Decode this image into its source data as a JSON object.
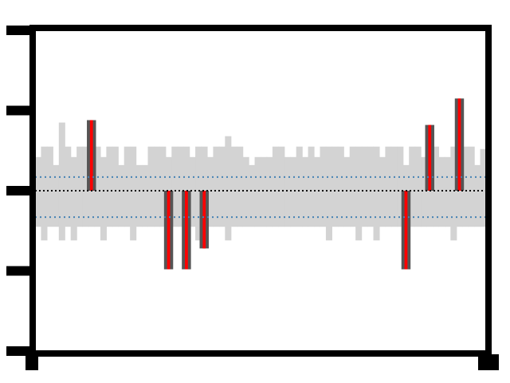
{
  "chart_data": {
    "type": "bar",
    "title": "",
    "xlabel": "",
    "ylabel": "",
    "ylim": [
      -2,
      2
    ],
    "grid": false,
    "legend": "none",
    "bins": 76,
    "baseline": 0,
    "threshold_upper": 0.17,
    "threshold_lower": -0.33,
    "colors": {
      "background_band": "#d3d3d3",
      "anomaly_base": "#555555",
      "anomaly": "#ff0000",
      "threshold": "#4682b4",
      "baseline": "#000000",
      "frame": "#000000"
    },
    "band_upper": [
      0.42,
      0.55,
      0.55,
      0.32,
      0.85,
      0.55,
      0.42,
      0.55,
      0.55,
      0.55,
      0.55,
      0.42,
      0.55,
      0.55,
      0.32,
      0.55,
      0.55,
      0.32,
      0.32,
      0.55,
      0.55,
      0.55,
      0.42,
      0.55,
      0.55,
      0.55,
      0.42,
      0.55,
      0.55,
      0.42,
      0.55,
      0.55,
      0.68,
      0.55,
      0.55,
      0.42,
      0.32,
      0.42,
      0.42,
      0.42,
      0.55,
      0.55,
      0.42,
      0.42,
      0.55,
      0.42,
      0.55,
      0.42,
      0.55,
      0.55,
      0.55,
      0.55,
      0.42,
      0.55,
      0.55,
      0.55,
      0.55,
      0.55,
      0.42,
      0.55,
      0.55,
      0.55,
      0.32,
      0.55,
      0.55,
      0.42,
      0.55,
      0.55,
      0.42,
      0.42,
      0.55,
      0.42,
      0.55,
      0.55,
      0.32,
      0.52
    ],
    "band_lower": [
      -0.45,
      -0.62,
      -0.45,
      -0.45,
      -0.62,
      -0.45,
      -0.62,
      -0.45,
      -0.45,
      -0.45,
      -0.45,
      -0.62,
      -0.45,
      -0.45,
      -0.45,
      -0.45,
      -0.62,
      -0.45,
      -0.45,
      -0.45,
      -0.45,
      -0.45,
      -0.62,
      -0.45,
      -0.45,
      -0.45,
      -0.45,
      -0.62,
      -0.45,
      -0.45,
      -0.45,
      -0.45,
      -0.62,
      -0.45,
      -0.45,
      -0.45,
      -0.45,
      -0.45,
      -0.45,
      -0.45,
      -0.45,
      -0.45,
      -0.45,
      -0.45,
      -0.45,
      -0.45,
      -0.45,
      -0.45,
      -0.45,
      -0.62,
      -0.45,
      -0.45,
      -0.45,
      -0.45,
      -0.62,
      -0.45,
      -0.45,
      -0.62,
      -0.45,
      -0.45,
      -0.45,
      -0.45,
      -0.62,
      -0.45,
      -0.45,
      -0.45,
      -0.45,
      -0.45,
      -0.45,
      -0.45,
      -0.62,
      -0.45,
      -0.45,
      -0.45,
      -0.45,
      -0.45
    ],
    "anomalies": [
      {
        "bin": 9,
        "value": 0.88
      },
      {
        "bin": 22,
        "value": -0.98
      },
      {
        "bin": 25,
        "value": -0.98
      },
      {
        "bin": 28,
        "value": -0.72
      },
      {
        "bin": 62,
        "value": -0.98
      },
      {
        "bin": 66,
        "value": 0.82
      },
      {
        "bin": 71,
        "value": 1.15
      }
    ]
  }
}
